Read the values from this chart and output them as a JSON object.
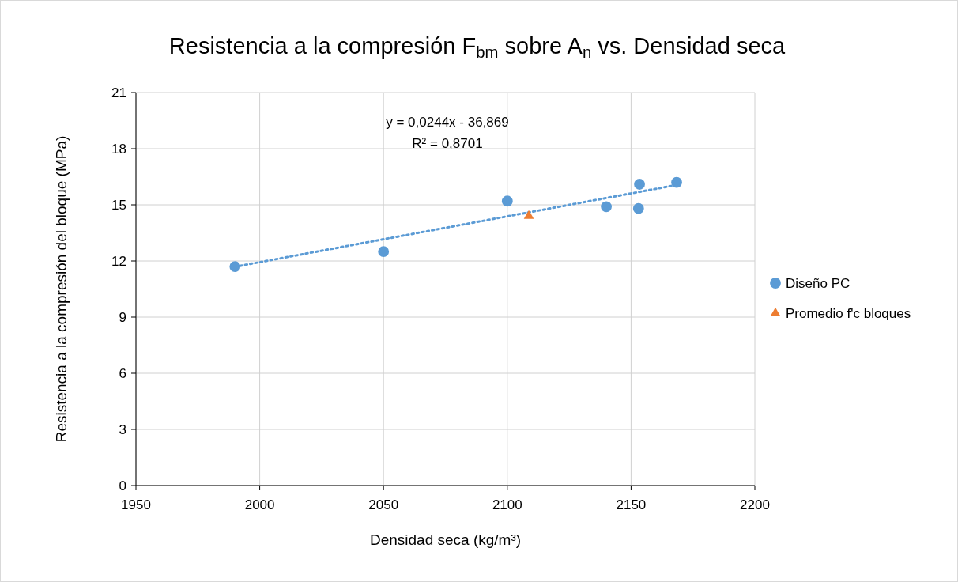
{
  "chart_data": {
    "type": "scatter",
    "title": "Resistencia a la compresión F$_{bm}$ sobre A$_{n}$ vs. Densidad seca",
    "xlabel": "Densidad seca (kg/m³)",
    "ylabel": "Resistencia a la compresión del bloque  (MPa)",
    "annotations": [
      "y = 0,0244x - 36,869",
      "R² = 0,8701"
    ],
    "xlim": [
      1950,
      2200
    ],
    "xticks": [
      1950,
      2000,
      2050,
      2100,
      2150,
      2200
    ],
    "ylim": [
      0,
      21
    ],
    "yticks": [
      0,
      3,
      6,
      9,
      12,
      15,
      18,
      21
    ],
    "grid": true,
    "legend": "right",
    "series": [
      {
        "name": "Diseño PC",
        "marker": "circle",
        "color": "#5b9bd5",
        "x": [
          1990,
          2050,
          2100,
          2140,
          2153.4,
          2153,
          2168.4
        ],
        "values": [
          11.7,
          12.5,
          15.2,
          14.9,
          16.1,
          14.8,
          16.2
        ]
      },
      {
        "name": "Promedio f'c bloques",
        "marker": "triangle",
        "color": "#ed7d31",
        "x": [
          2108.7
        ],
        "values": [
          14.4
        ]
      },
      {
        "type": "line",
        "marker": "none",
        "line_style": "dotted",
        "color": "#5b9bd5",
        "x": [
          1990,
          2168.4
        ],
        "values": [
          11.69,
          16.06
        ]
      }
    ]
  }
}
